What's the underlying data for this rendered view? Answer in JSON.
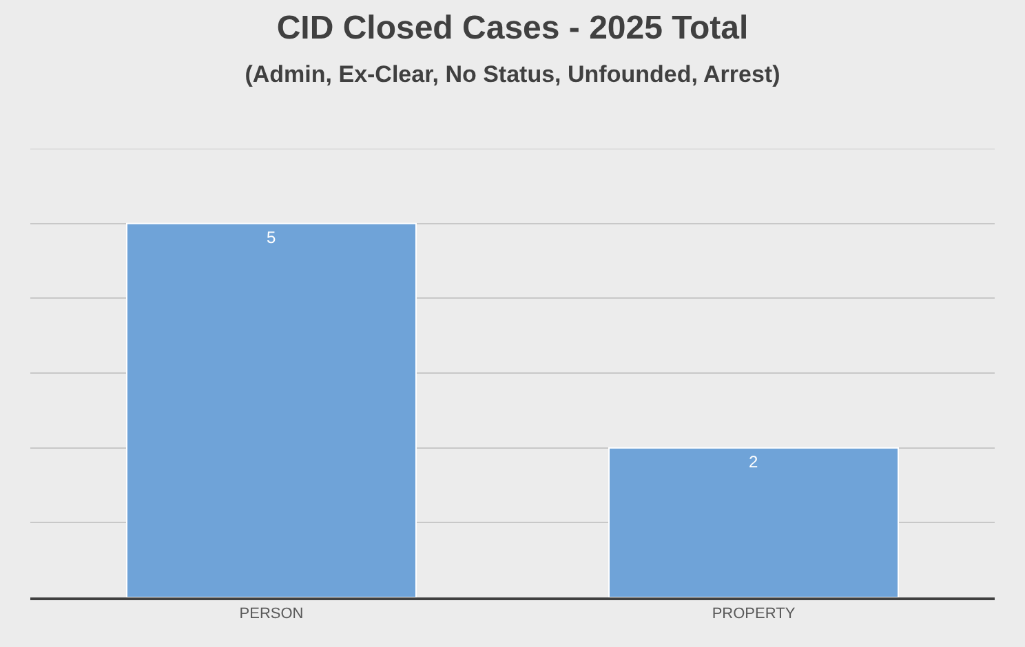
{
  "chart_data": {
    "type": "bar",
    "title": "CID Closed Cases - 2025 Total",
    "subtitle": "(Admin, Ex-Clear, No Status, Unfounded, Arrest)",
    "categories": [
      "PERSON",
      "PROPERTY"
    ],
    "values": [
      5,
      2
    ],
    "color": "#6fa3d8",
    "ylim": [
      0,
      6
    ],
    "yticks": [
      {
        "value": 0,
        "label": null
      },
      {
        "value": 1,
        "label": null
      },
      {
        "value": 2,
        "label": null
      },
      {
        "value": 3,
        "label": null
      },
      {
        "value": 4,
        "label": null
      },
      {
        "value": 5,
        "label": null
      },
      {
        "value": 6,
        "label": null
      }
    ],
    "grid": "y",
    "tick_labels": "x",
    "data_labels": true
  }
}
